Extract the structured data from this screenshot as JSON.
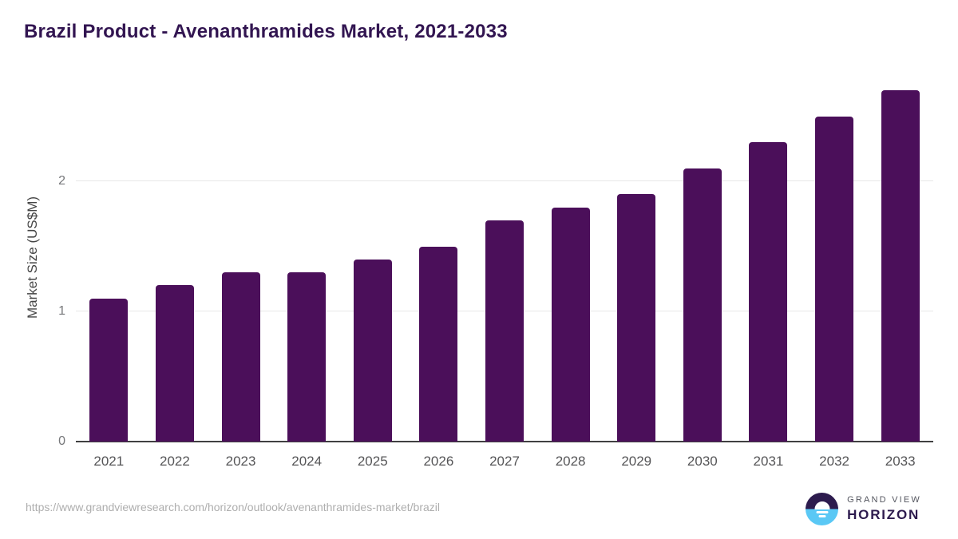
{
  "title": "Brazil Product - Avenanthramides Market, 2021-2033",
  "chart_data": {
    "type": "bar",
    "title": "Brazil Product - Avenanthramides Market, 2021-2033",
    "categories": [
      "2021",
      "2022",
      "2023",
      "2024",
      "2025",
      "2026",
      "2027",
      "2028",
      "2029",
      "2030",
      "2031",
      "2032",
      "2033"
    ],
    "values": [
      1.1,
      1.2,
      1.3,
      1.3,
      1.4,
      1.5,
      1.7,
      1.8,
      1.9,
      2.1,
      2.3,
      2.5,
      2.7
    ],
    "xlabel": "",
    "ylabel": "Market Size (US$M)",
    "ylim": [
      0,
      2.73
    ],
    "yticks": [
      0,
      1,
      2
    ],
    "grid": "horizontal-light",
    "legend": "none",
    "bar_color": "#4b0f5a"
  },
  "footer": {
    "source_url": "https://www.grandviewresearch.com/horizon/outlook/avenanthramides-market/brazil",
    "logo": {
      "line1": "GRAND VIEW",
      "line2": "HORIZON"
    }
  },
  "colors": {
    "bar": "#4b0f5a",
    "title": "#321551",
    "axis": "#404041",
    "gridline": "#e7e7e7",
    "tick_label": "#76777a",
    "x_label": "#555557",
    "url": "#aeaeae",
    "logo_navy": "#2d1b4e",
    "logo_sky": "#5ac8f5"
  }
}
